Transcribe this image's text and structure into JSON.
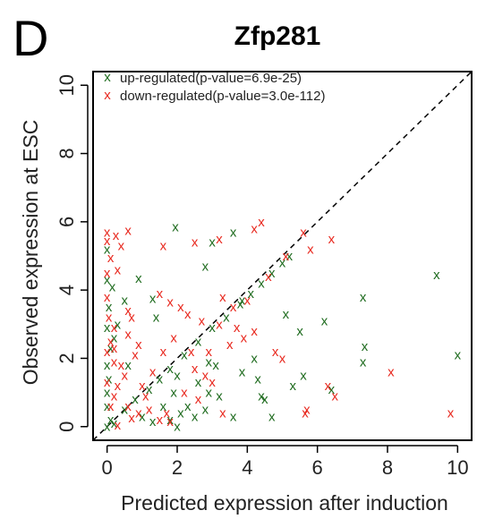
{
  "chart_data": {
    "type": "scatter",
    "panel_letter": "D",
    "title": "Zfp281",
    "xlabel": "Predicted expression after induction",
    "ylabel": "Observed expression at ESC",
    "xlim": [
      -0.4,
      10.4
    ],
    "ylim": [
      -0.4,
      10.4
    ],
    "xticks": [
      0,
      2,
      4,
      6,
      8,
      10
    ],
    "yticks": [
      0,
      2,
      4,
      6,
      8,
      10
    ],
    "grid": false,
    "legend_position": "top-left",
    "reference_line": "y = x (dashed)",
    "marker": "x",
    "series": [
      {
        "name": "up-regulated(p-value=6.9e-25)",
        "color": "#1e6b1e",
        "points": [
          [
            1.95,
            5.85
          ],
          [
            2.8,
            4.7
          ],
          [
            3.0,
            5.4
          ],
          [
            3.6,
            5.7
          ],
          [
            0.0,
            5.2
          ],
          [
            0.0,
            4.3
          ],
          [
            0.15,
            4.1
          ],
          [
            0.9,
            4.35
          ],
          [
            0.5,
            3.7
          ],
          [
            1.3,
            3.75
          ],
          [
            3.85,
            3.7
          ],
          [
            1.4,
            3.2
          ],
          [
            5.1,
            3.3
          ],
          [
            5.5,
            2.8
          ],
          [
            6.2,
            3.1
          ],
          [
            7.3,
            3.8
          ],
          [
            9.4,
            4.45
          ],
          [
            10.0,
            2.1
          ],
          [
            7.35,
            2.35
          ],
          [
            7.3,
            1.9
          ],
          [
            5.6,
            1.5
          ],
          [
            5.3,
            1.2
          ],
          [
            3.85,
            1.6
          ],
          [
            4.2,
            2.0
          ],
          [
            4.3,
            1.4
          ],
          [
            4.4,
            0.9
          ],
          [
            4.5,
            0.8
          ],
          [
            4.7,
            0.3
          ],
          [
            2.9,
            1.0
          ],
          [
            3.2,
            0.9
          ],
          [
            2.8,
            0.5
          ],
          [
            2.5,
            0.3
          ],
          [
            2.9,
            1.9
          ],
          [
            3.1,
            1.8
          ],
          [
            1.8,
            0.2
          ],
          [
            2.0,
            0.0
          ],
          [
            2.3,
            0.6
          ],
          [
            1.6,
            0.6
          ],
          [
            1.9,
            1.0
          ],
          [
            2.1,
            0.4
          ],
          [
            1.0,
            0.3
          ],
          [
            1.3,
            0.15
          ],
          [
            0.3,
            3.0
          ],
          [
            0.2,
            2.6
          ],
          [
            0.1,
            2.3
          ],
          [
            0.0,
            1.8
          ],
          [
            0.05,
            1.4
          ],
          [
            0.0,
            1.0
          ],
          [
            0.0,
            0.6
          ],
          [
            0.1,
            0.2
          ],
          [
            0.2,
            0.1
          ],
          [
            0.05,
            3.5
          ],
          [
            0.0,
            2.9
          ],
          [
            0.0,
            0.0
          ],
          [
            0.5,
            0.5
          ],
          [
            0.8,
            0.8
          ],
          [
            1.2,
            1.1
          ],
          [
            1.5,
            1.4
          ],
          [
            1.8,
            1.7
          ],
          [
            2.2,
            2.1
          ],
          [
            2.6,
            2.5
          ],
          [
            3.0,
            2.9
          ],
          [
            3.4,
            3.2
          ],
          [
            3.8,
            3.6
          ],
          [
            4.1,
            3.9
          ],
          [
            4.4,
            4.2
          ],
          [
            4.7,
            4.5
          ],
          [
            5.0,
            4.8
          ],
          [
            5.2,
            5.0
          ],
          [
            3.6,
            0.3
          ],
          [
            6.4,
            1.1
          ],
          [
            2.6,
            1.3
          ],
          [
            2.0,
            1.5
          ],
          [
            0.6,
            1.8
          ]
        ]
      },
      {
        "name": "down-regulated(p-value=3.0e-112)",
        "color": "#e8281e",
        "points": [
          [
            0.0,
            5.7
          ],
          [
            0.25,
            5.6
          ],
          [
            0.6,
            5.75
          ],
          [
            0.0,
            5.45
          ],
          [
            0.4,
            5.3
          ],
          [
            1.6,
            5.3
          ],
          [
            2.5,
            5.4
          ],
          [
            3.2,
            5.5
          ],
          [
            4.4,
            6.0
          ],
          [
            4.2,
            5.8
          ],
          [
            5.6,
            5.7
          ],
          [
            5.8,
            5.2
          ],
          [
            6.4,
            5.5
          ],
          [
            0.1,
            4.95
          ],
          [
            0.3,
            4.6
          ],
          [
            0.6,
            3.4
          ],
          [
            0.7,
            3.2
          ],
          [
            1.5,
            3.9
          ],
          [
            1.8,
            3.65
          ],
          [
            2.1,
            3.5
          ],
          [
            2.3,
            3.3
          ],
          [
            2.7,
            3.1
          ],
          [
            3.3,
            3.8
          ],
          [
            3.6,
            3.5
          ],
          [
            4.0,
            3.7
          ],
          [
            3.7,
            2.9
          ],
          [
            3.9,
            2.6
          ],
          [
            4.2,
            2.8
          ],
          [
            3.5,
            2.4
          ],
          [
            5.0,
            2.0
          ],
          [
            0.0,
            3.8
          ],
          [
            0.05,
            3.2
          ],
          [
            0.2,
            2.9
          ],
          [
            0.1,
            2.5
          ],
          [
            0.0,
            2.2
          ],
          [
            0.2,
            1.9
          ],
          [
            0.4,
            1.8
          ],
          [
            0.5,
            1.5
          ],
          [
            0.3,
            1.2
          ],
          [
            0.2,
            0.9
          ],
          [
            0.6,
            0.6
          ],
          [
            0.9,
            0.4
          ],
          [
            1.2,
            0.5
          ],
          [
            1.5,
            0.2
          ],
          [
            1.7,
            0.4
          ],
          [
            2.5,
            1.7
          ],
          [
            2.8,
            1.5
          ],
          [
            3.0,
            1.3
          ],
          [
            2.2,
            1.0
          ],
          [
            2.6,
            0.8
          ],
          [
            4.8,
            2.2
          ],
          [
            5.7,
            0.5
          ],
          [
            5.65,
            0.4
          ],
          [
            6.3,
            1.2
          ],
          [
            6.5,
            0.9
          ],
          [
            8.1,
            1.6
          ],
          [
            9.8,
            0.4
          ],
          [
            3.3,
            0.4
          ],
          [
            1.8,
            0.15
          ],
          [
            0.3,
            0.05
          ],
          [
            0.0,
            4.5
          ],
          [
            0.0,
            1.3
          ],
          [
            0.1,
            0.6
          ],
          [
            0.2,
            2.3
          ],
          [
            0.6,
            2.7
          ],
          [
            0.8,
            2.1
          ],
          [
            1.0,
            1.2
          ],
          [
            1.3,
            1.6
          ],
          [
            1.6,
            2.2
          ],
          [
            1.9,
            2.6
          ],
          [
            2.4,
            2.2
          ],
          [
            2.9,
            2.2
          ],
          [
            3.2,
            3.0
          ],
          [
            4.6,
            4.4
          ],
          [
            5.1,
            5.0
          ],
          [
            1.1,
            0.9
          ],
          [
            0.9,
            2.4
          ],
          [
            0.7,
            0.25
          ]
        ]
      }
    ]
  }
}
